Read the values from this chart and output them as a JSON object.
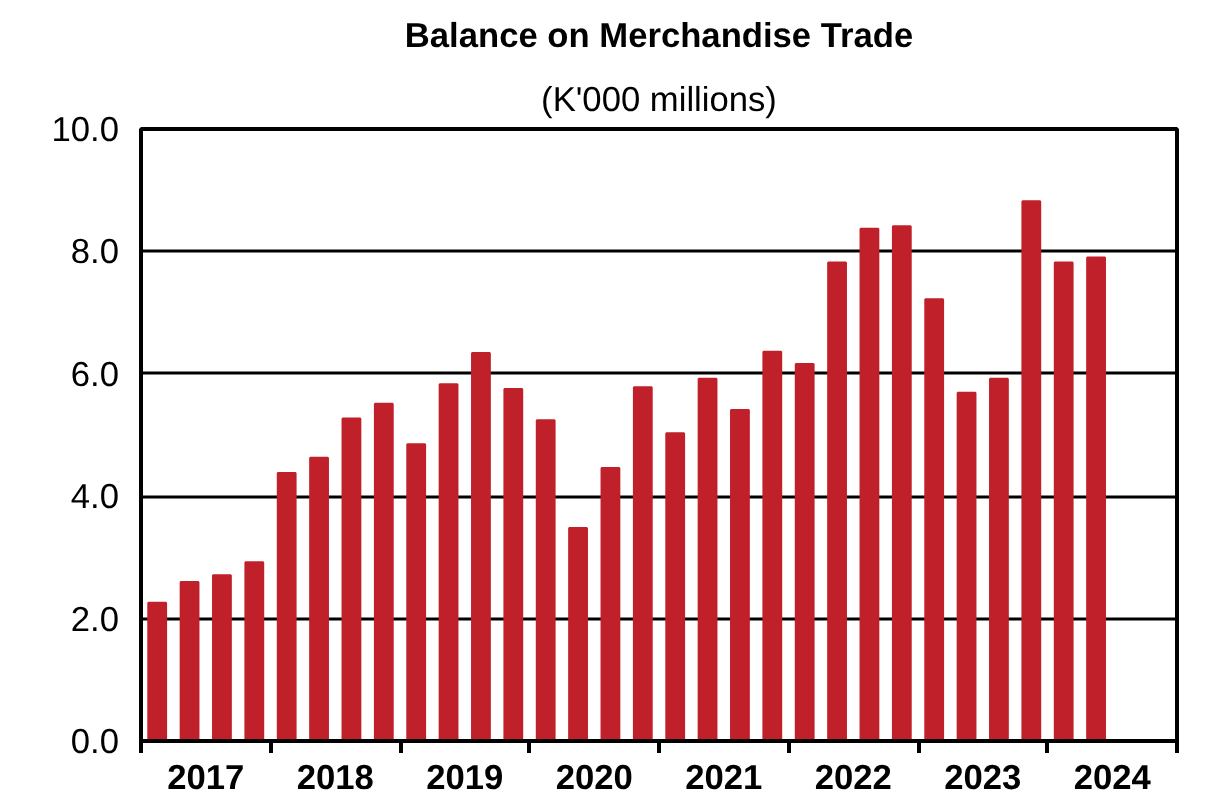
{
  "chart_data": {
    "type": "bar",
    "title": "Balance on Merchandise Trade",
    "subtitle": "(K'000 millions)",
    "x": [
      2017.125,
      2017.375,
      2017.625,
      2017.875,
      2018.125,
      2018.375,
      2018.625,
      2018.875,
      2019.125,
      2019.375,
      2019.625,
      2019.875,
      2020.125,
      2020.375,
      2020.625,
      2020.875,
      2021.125,
      2021.375,
      2021.625,
      2021.875,
      2022.125,
      2022.375,
      2022.625,
      2022.875,
      2023.125,
      2023.375,
      2023.625,
      2023.875,
      2024.125,
      2024.375
    ],
    "values": [
      2.26,
      2.6,
      2.71,
      2.92,
      4.38,
      4.63,
      5.27,
      5.51,
      4.85,
      5.83,
      6.34,
      5.75,
      5.24,
      3.48,
      4.46,
      5.78,
      5.03,
      5.92,
      5.41,
      6.36,
      6.16,
      7.82,
      8.37,
      8.41,
      7.22,
      5.69,
      5.92,
      8.82,
      7.82,
      7.9
    ],
    "color": "#c0202a",
    "xlim": [
      2017,
      2025
    ],
    "xticks": [
      {
        "value": 2017,
        "label": null
      },
      {
        "value": 2017.5,
        "label": "2017"
      },
      {
        "value": 2018,
        "label": null
      },
      {
        "value": 2018.5,
        "label": "2018"
      },
      {
        "value": 2019,
        "label": null
      },
      {
        "value": 2019.5,
        "label": "2019"
      },
      {
        "value": 2020,
        "label": null
      },
      {
        "value": 2020.5,
        "label": "2020"
      },
      {
        "value": 2021,
        "label": null
      },
      {
        "value": 2021.5,
        "label": "2021"
      },
      {
        "value": 2022,
        "label": null
      },
      {
        "value": 2022.5,
        "label": "2022"
      },
      {
        "value": 2023,
        "label": null
      },
      {
        "value": 2023.5,
        "label": "2023"
      },
      {
        "value": 2024,
        "label": null
      },
      {
        "value": 2024.5,
        "label": "2024"
      },
      {
        "value": 2025,
        "label": null
      }
    ],
    "ylim": [
      0,
      10
    ],
    "yticks": [
      {
        "value": 0,
        "label": "0.0"
      },
      {
        "value": 2,
        "label": "2.0"
      },
      {
        "value": 4,
        "label": "4.0"
      },
      {
        "value": 6,
        "label": "6.0"
      },
      {
        "value": 8,
        "label": "8.0"
      },
      {
        "value": 10,
        "label": "10.0"
      }
    ],
    "grid": "y"
  }
}
